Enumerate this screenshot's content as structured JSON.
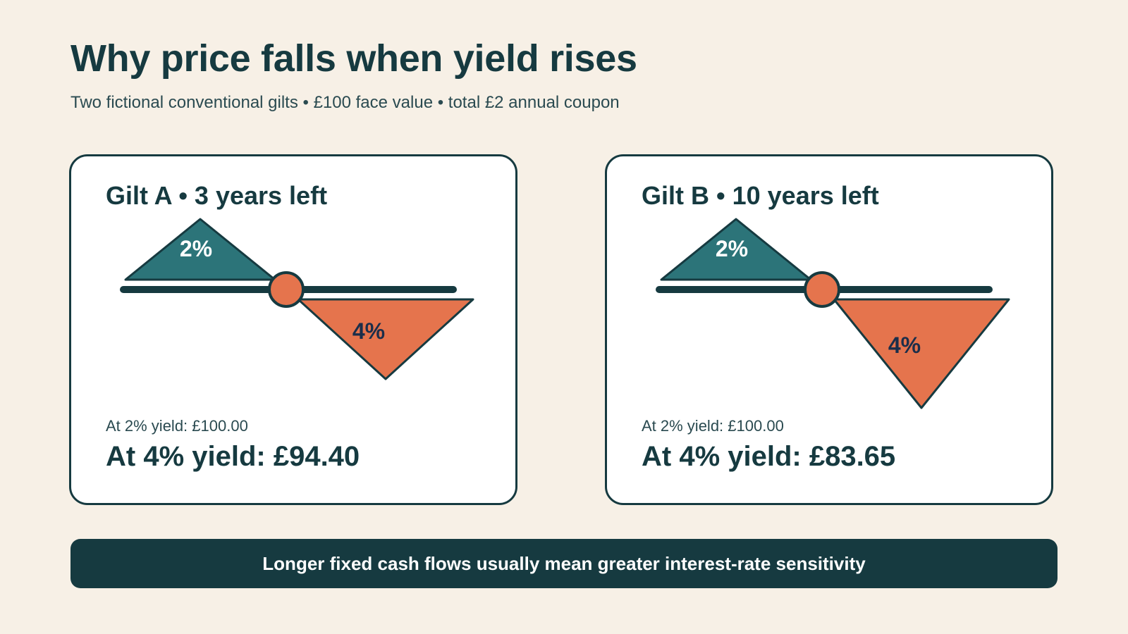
{
  "header": {
    "title": "Why price falls when yield rises",
    "subtitle": "Two fictional conventional gilts • £100 face value • total £2 annual coupon"
  },
  "colors": {
    "background": "#f7f0e6",
    "ink": "#163a40",
    "teal": "#2c7479",
    "orange": "#e5744d",
    "label_dark": "#1b2e4a"
  },
  "cards": [
    {
      "title": "Gilt A • 3 years left",
      "low_yield_label": "2%",
      "high_yield_label": "4%",
      "base_text": "At 2% yield: £100.00",
      "price_text": "At 4% yield: £94.40",
      "price_at_low_yield": 100.0,
      "price_at_high_yield": 94.4
    },
    {
      "title": "Gilt B • 10 years left",
      "low_yield_label": "2%",
      "high_yield_label": "4%",
      "base_text": "At 2% yield: £100.00",
      "price_text": "At 4% yield: £83.65",
      "price_at_low_yield": 100.0,
      "price_at_high_yield": 83.65
    }
  ],
  "footer": {
    "banner_text": "Longer fixed cash flows usually mean greater interest-rate sensitivity"
  }
}
